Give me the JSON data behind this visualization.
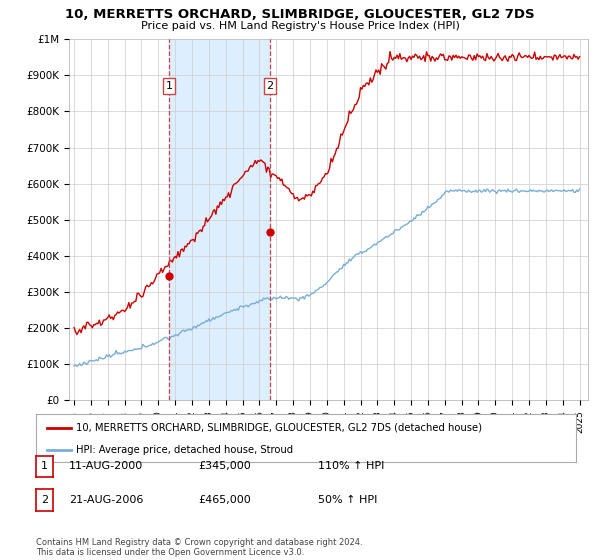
{
  "title": "10, MERRETTS ORCHARD, SLIMBRIDGE, GLOUCESTER, GL2 7DS",
  "subtitle": "Price paid vs. HM Land Registry's House Price Index (HPI)",
  "sale1_date": "11-AUG-2000",
  "sale1_price": 345000,
  "sale1_year": 2000.625,
  "sale2_date": "21-AUG-2006",
  "sale2_price": 465000,
  "sale2_year": 2006.625,
  "sale1_hpi_pct": "110% ↑ HPI",
  "sale2_hpi_pct": "50% ↑ HPI",
  "red_color": "#cc0000",
  "blue_color": "#7aaed6",
  "shade_color": "#ddeeff",
  "dashed_color": "#cc4444",
  "background": "#ffffff",
  "grid_color": "#cccccc",
  "legend_label_red": "10, MERRETTS ORCHARD, SLIMBRIDGE, GLOUCESTER, GL2 7DS (detached house)",
  "legend_label_blue": "HPI: Average price, detached house, Stroud",
  "footer": "Contains HM Land Registry data © Crown copyright and database right 2024.\nThis data is licensed under the Open Government Licence v3.0.",
  "ylim": [
    0,
    1000000
  ],
  "yticks": [
    0,
    100000,
    200000,
    300000,
    400000,
    500000,
    600000,
    700000,
    800000,
    900000,
    1000000
  ],
  "ytick_labels": [
    "£0",
    "£100K",
    "£200K",
    "£300K",
    "£400K",
    "£500K",
    "£600K",
    "£700K",
    "£800K",
    "£900K",
    "£1M"
  ],
  "xlim_min": 1994.7,
  "xlim_max": 2025.5
}
